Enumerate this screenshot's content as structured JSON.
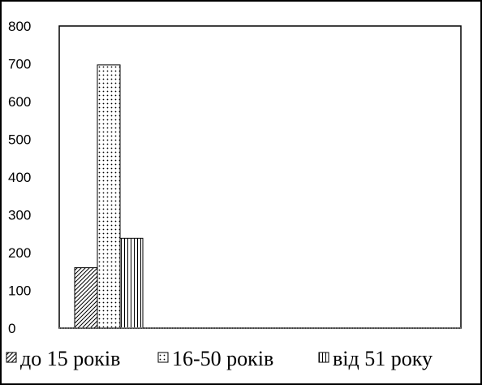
{
  "chart_data": {
    "type": "bar",
    "categories": [
      ""
    ],
    "series": [
      {
        "name": "до 15 років",
        "values": [
          160
        ],
        "pattern": "diagonal"
      },
      {
        "name": "16-50 років",
        "values": [
          697
        ],
        "pattern": "dots"
      },
      {
        "name": "від 51 року",
        "values": [
          238
        ],
        "pattern": "vertical"
      }
    ],
    "title": "",
    "xlabel": "",
    "ylabel": "",
    "ylim": [
      0,
      800
    ],
    "yticks": [
      "0",
      "100",
      "200",
      "300",
      "400",
      "500",
      "600",
      "700",
      "800"
    ],
    "grid": false,
    "legend": "bottom"
  }
}
